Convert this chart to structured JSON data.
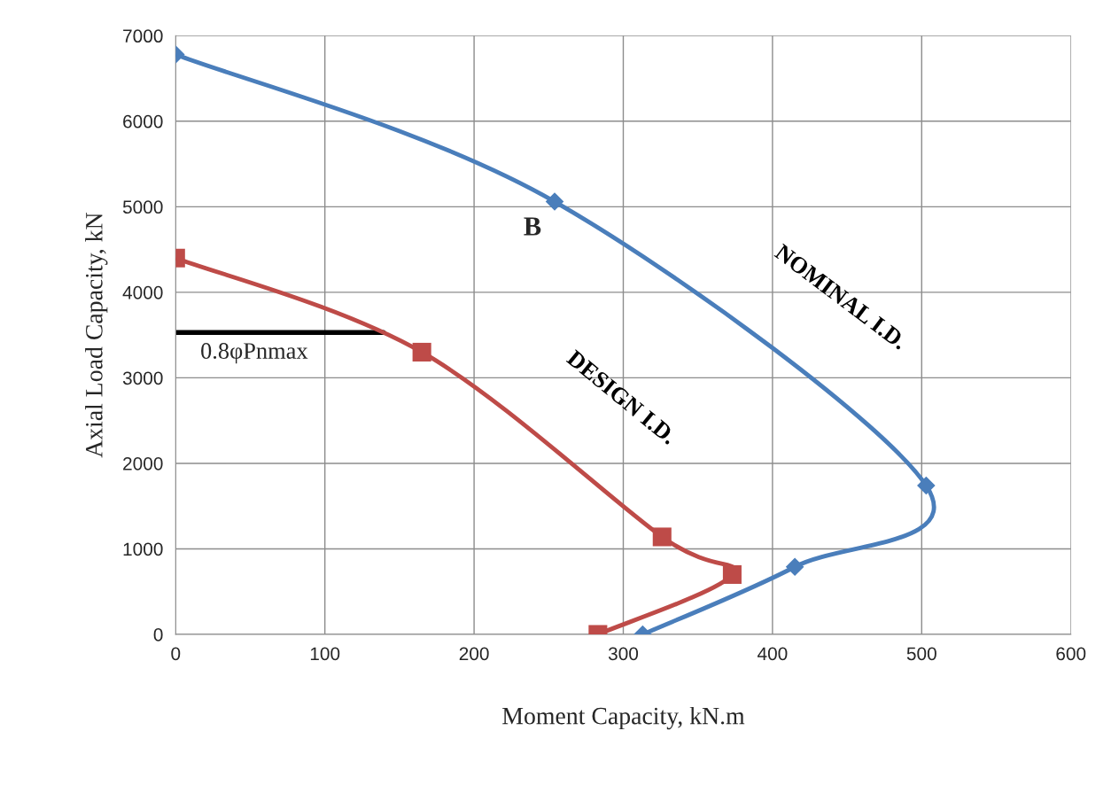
{
  "chart_data": {
    "type": "line",
    "xlabel": "Moment Capacity, kN.m",
    "ylabel": "Axial Load Capacity, kN",
    "series": [
      {
        "name": "NOMINAL I.D.",
        "color": "#4a7ebb",
        "marker": "diamond",
        "x": [
          0,
          254,
          503,
          415,
          313
        ],
        "values": [
          6780,
          5060,
          1740,
          790,
          0
        ]
      },
      {
        "name": "DESIGN I.D.",
        "color": "#be4b48",
        "marker": "square",
        "x": [
          0,
          165,
          326,
          373,
          283
        ],
        "values": [
          4400,
          3300,
          1140,
          700,
          0
        ]
      }
    ],
    "ref_lines": [
      {
        "axis": "y",
        "value": 3530,
        "label": "0.8φPnmax",
        "color": "#000000"
      }
    ],
    "annotations": [
      "B"
    ],
    "xlim": [
      0,
      600
    ],
    "ylim": [
      0,
      7000
    ],
    "xticks": [
      0,
      100,
      200,
      300,
      400,
      500,
      600
    ],
    "yticks": [
      0,
      1000,
      2000,
      3000,
      4000,
      5000,
      6000,
      7000
    ],
    "grid": true,
    "legend": false,
    "line_style": "solid"
  }
}
